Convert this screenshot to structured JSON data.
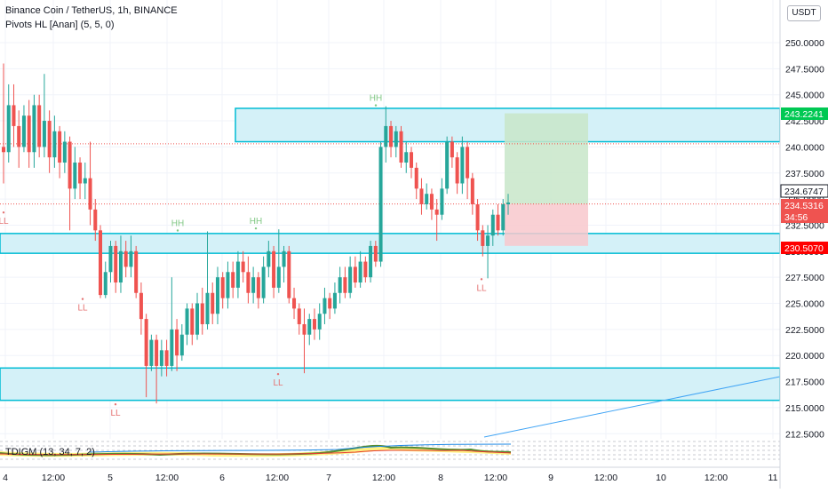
{
  "header": {
    "symbol_line": "Binance Coin / TetherUS, 1h, BINANCE",
    "indicator_line": "Pivots HL [Anan] (5, 5, 0)"
  },
  "currency_button": "USDT",
  "indicator_panel_label": "TDIGM (13, 34, 7, 2)",
  "colors": {
    "up": "#26a69a",
    "down": "#ef5350",
    "zone_fill": "#d4f1f8",
    "zone_border": "#00bcd4",
    "target_fill": "#c8e6c9",
    "stop_fill": "#f8c8cc"
  },
  "chart_data": {
    "type": "candlestick",
    "y_axis": {
      "ylim": [
        211.5,
        253.5
      ],
      "ticks": [
        "250.0000",
        "247.5000",
        "245.0000",
        "242.5000",
        "240.0000",
        "237.5000",
        "235.0000",
        "232.5000",
        "230.0000",
        "227.5000",
        "225.0000",
        "222.5000",
        "220.0000",
        "217.5000",
        "215.0000",
        "212.5000"
      ]
    },
    "x_axis": {
      "ticks": [
        "4",
        "12:00",
        "5",
        "12:00",
        "6",
        "12:00",
        "7",
        "12:00",
        "8",
        "12:00",
        "9",
        "12:00",
        "10",
        "12:00",
        "11"
      ]
    },
    "price_labels": [
      {
        "value": "243.2241",
        "role": "target"
      },
      {
        "value": "234.6747",
        "role": "last"
      },
      {
        "value": "234.5316",
        "role": "entry"
      },
      {
        "value": "34:56",
        "role": "countdown"
      },
      {
        "value": "230.5070",
        "role": "stop"
      }
    ],
    "zones": [
      {
        "from_price": 240.5,
        "to_price": 243.7
      },
      {
        "from_price": 229.8,
        "to_price": 231.7
      },
      {
        "from_price": 215.7,
        "to_price": 218.8
      }
    ],
    "position": {
      "entry": 234.53,
      "target": 243.22,
      "stop": 230.51
    },
    "pivots": [
      {
        "label": "LL",
        "price": 233.8
      },
      {
        "label": "LL",
        "price": 225.5
      },
      {
        "label": "LL",
        "price": 215.4
      },
      {
        "label": "HH",
        "price": 231.9
      },
      {
        "label": "HH",
        "price": 232.1
      },
      {
        "label": "LL",
        "price": 218.3
      },
      {
        "label": "HH",
        "price": 243.9
      },
      {
        "label": "LL",
        "price": 227.4
      }
    ],
    "candles": [
      [
        240.0,
        239.5,
        248.0,
        236.5
      ],
      [
        239.5,
        244.0,
        246.0,
        238.5
      ],
      [
        244.0,
        242.0,
        246.0,
        240.0
      ],
      [
        242.0,
        240.0,
        243.5,
        238.0
      ],
      [
        240.0,
        243.0,
        244.0,
        239.5
      ],
      [
        243.0,
        239.5,
        244.5,
        238.0
      ],
      [
        239.5,
        244.0,
        245.0,
        238.0
      ],
      [
        244.0,
        240.0,
        245.0,
        239.0
      ],
      [
        240.0,
        242.5,
        247.0,
        239.0
      ],
      [
        242.5,
        239.0,
        243.5,
        237.5
      ],
      [
        239.0,
        241.5,
        243.0,
        238.0
      ],
      [
        241.5,
        238.5,
        242.0,
        237.0
      ],
      [
        238.5,
        240.5,
        241.5,
        237.5
      ],
      [
        240.5,
        236.0,
        241.0,
        232.0
      ],
      [
        236.0,
        238.5,
        240.0,
        235.0
      ],
      [
        238.5,
        236.5,
        239.0,
        235.0
      ],
      [
        236.5,
        237.0,
        238.5,
        235.0
      ],
      [
        237.0,
        234.0,
        240.5,
        232.5
      ],
      [
        234.0,
        232.0,
        235.0,
        231.0
      ],
      [
        232.0,
        225.8,
        232.5,
        225.5
      ],
      [
        225.8,
        228.0,
        229.0,
        225.5
      ],
      [
        228.0,
        230.5,
        231.0,
        227.0
      ],
      [
        230.5,
        227.0,
        231.0,
        226.0
      ],
      [
        227.0,
        230.0,
        231.5,
        226.0
      ],
      [
        230.0,
        228.5,
        231.0,
        227.5
      ],
      [
        228.5,
        230.0,
        231.5,
        227.5
      ],
      [
        230.0,
        226.0,
        230.5,
        225.5
      ],
      [
        226.0,
        223.5,
        227.0,
        222.0
      ],
      [
        223.5,
        219.0,
        224.0,
        216.0
      ],
      [
        219.0,
        221.5,
        222.0,
        218.5
      ],
      [
        221.5,
        219.0,
        222.0,
        215.4
      ],
      [
        219.0,
        220.5,
        221.5,
        218.0
      ],
      [
        220.5,
        219.0,
        221.5,
        218.0
      ],
      [
        219.0,
        222.5,
        227.5,
        218.5
      ],
      [
        222.5,
        220.0,
        223.5,
        218.5
      ],
      [
        220.0,
        222.0,
        223.0,
        219.5
      ],
      [
        222.0,
        224.5,
        225.0,
        221.0
      ],
      [
        224.5,
        222.0,
        225.0,
        221.0
      ],
      [
        222.0,
        225.0,
        226.0,
        221.5
      ],
      [
        225.0,
        223.0,
        226.5,
        222.0
      ],
      [
        223.0,
        226.0,
        231.9,
        222.5
      ],
      [
        226.0,
        224.0,
        227.0,
        223.0
      ],
      [
        224.0,
        227.5,
        228.5,
        223.0
      ],
      [
        227.5,
        225.5,
        228.0,
        224.5
      ],
      [
        225.5,
        228.0,
        229.0,
        224.5
      ],
      [
        228.0,
        226.5,
        229.0,
        225.5
      ],
      [
        226.5,
        229.0,
        230.0,
        225.5
      ],
      [
        229.0,
        228.0,
        230.0,
        227.0
      ],
      [
        228.0,
        226.0,
        229.5,
        225.0
      ],
      [
        226.0,
        227.5,
        228.5,
        225.0
      ],
      [
        227.5,
        225.5,
        228.0,
        224.5
      ],
      [
        225.5,
        228.5,
        229.5,
        225.0
      ],
      [
        228.5,
        230.0,
        231.0,
        227.5
      ],
      [
        230.0,
        226.5,
        230.5,
        225.5
      ],
      [
        226.5,
        228.5,
        232.1,
        226.0
      ],
      [
        228.5,
        230.0,
        230.5,
        227.0
      ],
      [
        230.0,
        225.5,
        230.5,
        225.0
      ],
      [
        225.5,
        224.5,
        226.5,
        223.5
      ],
      [
        224.5,
        223.0,
        225.0,
        222.0
      ],
      [
        223.0,
        222.0,
        224.5,
        218.3
      ],
      [
        222.0,
        223.5,
        224.0,
        221.0
      ],
      [
        223.5,
        222.5,
        224.5,
        221.5
      ],
      [
        222.5,
        224.0,
        225.0,
        221.5
      ],
      [
        224.0,
        225.5,
        226.5,
        223.0
      ],
      [
        225.5,
        224.5,
        226.0,
        223.5
      ],
      [
        224.5,
        226.0,
        227.0,
        224.0
      ],
      [
        226.0,
        227.5,
        228.5,
        225.0
      ],
      [
        227.5,
        226.0,
        228.5,
        225.5
      ],
      [
        226.0,
        228.5,
        229.5,
        225.5
      ],
      [
        228.5,
        227.0,
        229.5,
        226.5
      ],
      [
        227.0,
        229.0,
        230.0,
        226.5
      ],
      [
        229.0,
        227.5,
        229.5,
        227.0
      ],
      [
        227.5,
        230.5,
        231.0,
        227.0
      ],
      [
        230.5,
        229.0,
        231.0,
        228.5
      ],
      [
        229.0,
        240.0,
        240.5,
        228.5
      ],
      [
        240.0,
        242.0,
        243.9,
        238.5
      ],
      [
        242.0,
        240.0,
        242.5,
        239.0
      ],
      [
        240.0,
        241.5,
        242.0,
        239.0
      ],
      [
        241.5,
        238.5,
        242.0,
        238.0
      ],
      [
        238.5,
        239.5,
        240.5,
        237.5
      ],
      [
        239.5,
        238.0,
        240.0,
        237.0
      ],
      [
        238.0,
        236.0,
        238.5,
        235.0
      ],
      [
        236.0,
        234.5,
        237.0,
        233.5
      ],
      [
        234.5,
        235.5,
        236.5,
        234.0
      ],
      [
        235.5,
        234.0,
        236.0,
        233.0
      ],
      [
        234.0,
        233.5,
        235.0,
        231.0
      ],
      [
        233.5,
        236.0,
        237.0,
        233.0
      ],
      [
        236.0,
        240.5,
        241.0,
        235.5
      ],
      [
        240.5,
        239.0,
        241.0,
        238.0
      ],
      [
        239.0,
        236.5,
        239.5,
        235.5
      ],
      [
        236.5,
        240.0,
        241.0,
        235.5
      ],
      [
        240.0,
        237.0,
        240.5,
        235.0
      ],
      [
        237.0,
        234.5,
        237.5,
        233.5
      ],
      [
        234.5,
        232.0,
        235.0,
        231.0
      ],
      [
        232.0,
        230.5,
        232.5,
        229.5
      ],
      [
        230.5,
        231.5,
        232.5,
        227.4
      ],
      [
        231.5,
        233.5,
        234.0,
        230.5
      ],
      [
        233.5,
        232.0,
        234.5,
        231.5
      ],
      [
        232.0,
        234.5,
        235.0,
        231.5
      ],
      [
        234.5,
        234.67,
        235.5,
        233.5
      ]
    ]
  }
}
